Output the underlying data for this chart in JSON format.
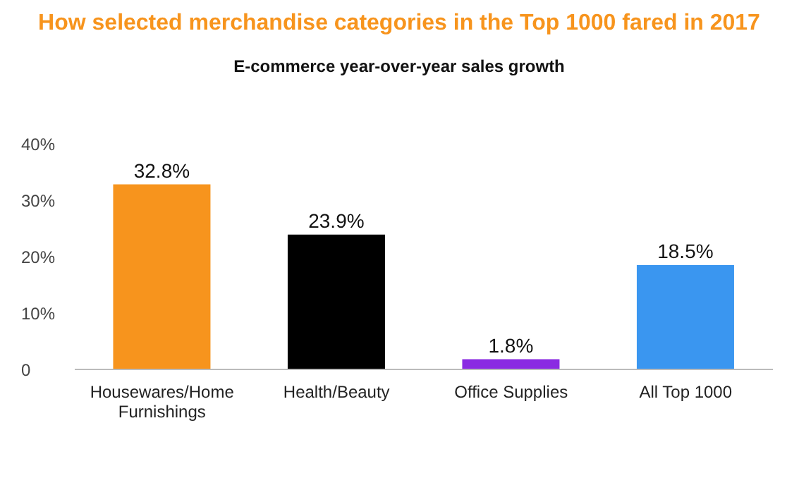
{
  "chart_data": {
    "type": "bar",
    "title": "How selected merchandise categories in the Top 1000 fared in 2017",
    "subtitle": "E-commerce year-over-year sales growth",
    "categories": [
      "Housewares/Home Furnishings",
      "Health/Beauty",
      "Office Supplies",
      "All Top 1000"
    ],
    "values": [
      32.8,
      23.9,
      1.8,
      18.5
    ],
    "colors": [
      "#f7941d",
      "#000000",
      "#8a2be2",
      "#3a96f0"
    ],
    "value_labels": [
      "32.8%",
      "23.9%",
      "1.8%",
      "18.5%"
    ],
    "ylim": [
      0,
      40
    ],
    "yticks": [
      0,
      {
        "value": 10,
        "label": "10%"
      },
      {
        "value": 20,
        "label": "20%"
      },
      {
        "value": 30,
        "label": "30%"
      },
      {
        "value": 40,
        "label": "40%"
      }
    ]
  }
}
